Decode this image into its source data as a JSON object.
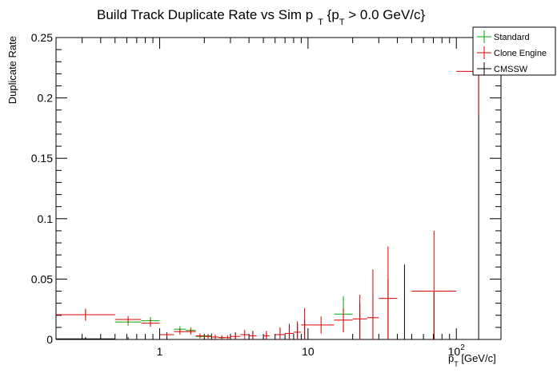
{
  "chart_data": {
    "type": "scatter",
    "title_main": "Build Track Duplicate Rate vs Sim p",
    "title_sub": "T",
    "title_rest": " {p",
    "title_sub2": "T",
    "title_tail": " > 0.0 GeV/c}",
    "ylabel": "Duplicate Rate",
    "xlabel_main": "p",
    "xlabel_sub": "T",
    "xlabel_rest": " [GeV/c]",
    "x_scale": "log",
    "xlim": [
      0.2,
      200
    ],
    "ylim": [
      0,
      0.25
    ],
    "y_ticks": [
      "0",
      "0.05",
      "0.1",
      "0.15",
      "0.2",
      "0.25"
    ],
    "x_ticks": [
      {
        "value": 1,
        "label": "1"
      },
      {
        "value": 10,
        "label": "10"
      },
      {
        "value": 100,
        "label": "10",
        "sup": "2"
      }
    ],
    "legend": {
      "placement": "top-right",
      "entries": [
        {
          "name": "Standard",
          "color": "#00aa00"
        },
        {
          "name": "Clone Engine",
          "color": "#dd0000"
        },
        {
          "name": "CMSSW",
          "color": "#000000"
        }
      ]
    },
    "series": [
      {
        "name": "Standard",
        "color": "#00aa00",
        "points": [
          {
            "x_lo": 0.2,
            "x_hi": 0.5,
            "y": 0.0205,
            "err": 0.004
          },
          {
            "x_lo": 0.5,
            "x_hi": 0.75,
            "y": 0.0145,
            "err": 0.003
          },
          {
            "x_lo": 0.75,
            "x_hi": 1.0,
            "y": 0.0155,
            "err": 0.003
          },
          {
            "x_lo": 1.0,
            "x_hi": 1.25,
            "y": 0.004,
            "err": 0.0015
          },
          {
            "x_lo": 1.25,
            "x_hi": 1.5,
            "y": 0.0085,
            "err": 0.0025
          },
          {
            "x_lo": 1.5,
            "x_hi": 1.75,
            "y": 0.0075,
            "err": 0.0025
          },
          {
            "x_lo": 1.75,
            "x_hi": 2.0,
            "y": 0.0025,
            "err": 0.0015
          },
          {
            "x_lo": 2.0,
            "x_hi": 2.25,
            "y": 0.003,
            "err": 0.0015
          },
          {
            "x_lo": 2.25,
            "x_hi": 2.5,
            "y": 0.002,
            "err": 0.0015
          },
          {
            "x_lo": 2.5,
            "x_hi": 2.75,
            "y": 0.0015,
            "err": 0.0015
          },
          {
            "x_lo": 15,
            "x_hi": 20,
            "y": 0.021,
            "err": 0.015
          }
        ]
      },
      {
        "name": "Clone Engine",
        "color": "#dd0000",
        "points": [
          {
            "x_lo": 0.2,
            "x_hi": 0.5,
            "y": 0.0205,
            "err": 0.005
          },
          {
            "x_lo": 0.5,
            "x_hi": 0.75,
            "y": 0.0165,
            "err": 0.003
          },
          {
            "x_lo": 0.75,
            "x_hi": 1.0,
            "y": 0.0135,
            "err": 0.003
          },
          {
            "x_lo": 1.0,
            "x_hi": 1.25,
            "y": 0.004,
            "err": 0.0015
          },
          {
            "x_lo": 1.25,
            "x_hi": 1.5,
            "y": 0.0065,
            "err": 0.0025
          },
          {
            "x_lo": 1.5,
            "x_hi": 1.75,
            "y": 0.0065,
            "err": 0.0025
          },
          {
            "x_lo": 1.75,
            "x_hi": 2.0,
            "y": 0.003,
            "err": 0.002
          },
          {
            "x_lo": 2.0,
            "x_hi": 2.25,
            "y": 0.0025,
            "err": 0.002
          },
          {
            "x_lo": 2.25,
            "x_hi": 2.5,
            "y": 0.002,
            "err": 0.002
          },
          {
            "x_lo": 2.5,
            "x_hi": 2.75,
            "y": 0.0015,
            "err": 0.002
          },
          {
            "x_lo": 2.75,
            "x_hi": 3.0,
            "y": 0.0015,
            "err": 0.002
          },
          {
            "x_lo": 3.0,
            "x_hi": 3.5,
            "y": 0.0025,
            "err": 0.003
          },
          {
            "x_lo": 3.5,
            "x_hi": 4.0,
            "y": 0.004,
            "err": 0.004
          },
          {
            "x_lo": 4.0,
            "x_hi": 4.5,
            "y": 0.003,
            "err": 0.004
          },
          {
            "x_lo": 5.0,
            "x_hi": 5.5,
            "y": 0.003,
            "err": 0.004
          },
          {
            "x_lo": 6.0,
            "x_hi": 7.0,
            "y": 0.004,
            "err": 0.006
          },
          {
            "x_lo": 7.0,
            "x_hi": 8.0,
            "y": 0.005,
            "err": 0.008
          },
          {
            "x_lo": 8.0,
            "x_hi": 9.0,
            "y": 0.006,
            "err": 0.009
          },
          {
            "x_lo": 9.0,
            "x_hi": 10.0,
            "y": 0.012,
            "err": 0.014
          },
          {
            "x_lo": 10.0,
            "x_hi": 15.0,
            "y": 0.012,
            "err": 0.007
          },
          {
            "x_lo": 15.0,
            "x_hi": 20.0,
            "y": 0.016,
            "err": 0.01
          },
          {
            "x_lo": 20.0,
            "x_hi": 25.0,
            "y": 0.017,
            "err": 0.02
          },
          {
            "x_lo": 25.0,
            "x_hi": 30.0,
            "y": 0.018,
            "err": 0.04
          },
          {
            "x_lo": 30.0,
            "x_hi": 40.0,
            "y": 0.034,
            "err": 0.043
          },
          {
            "x_lo": 50.0,
            "x_hi": 100.0,
            "y": 0.04,
            "err": 0.05
          },
          {
            "x_lo": 100.0,
            "x_hi": 200.0,
            "y": 0.222,
            "err": 0.036
          }
        ]
      },
      {
        "name": "CMSSW",
        "color": "#000000",
        "points": [
          {
            "x_lo": 0.2,
            "x_hi": 0.5,
            "y": 0.0005,
            "err": 0.0015
          },
          {
            "x_lo": 0.5,
            "x_hi": 0.75,
            "y": 0.0,
            "err": 0.002
          },
          {
            "x_lo": 1.0,
            "x_hi": 1.25,
            "y": 0.0,
            "err": 0.006
          },
          {
            "x_lo": 2.0,
            "x_hi": 2.5,
            "y": 0.0,
            "err": 0.005
          },
          {
            "x_lo": 3.0,
            "x_hi": 3.5,
            "y": 0.0,
            "err": 0.006
          },
          {
            "x_lo": 4.0,
            "x_hi": 4.5,
            "y": 0.0,
            "err": 0.007
          },
          {
            "x_lo": 5.0,
            "x_hi": 5.5,
            "y": 0.0,
            "err": 0.007
          },
          {
            "x_lo": 6.0,
            "x_hi": 7.0,
            "y": 0.0,
            "err": 0.009
          },
          {
            "x_lo": 7.0,
            "x_hi": 8.0,
            "y": 0.0,
            "err": 0.011
          },
          {
            "x_lo": 8.0,
            "x_hi": 9.0,
            "y": 0.0,
            "err": 0.013
          },
          {
            "x_lo": 9.0,
            "x_hi": 10.0,
            "y": 0.0,
            "err": 0.016
          },
          {
            "x_lo": 20.0,
            "x_hi": 25.0,
            "y": 0.0,
            "err": 0.03
          },
          {
            "x_lo": 25.0,
            "x_hi": 30.0,
            "y": 0.0,
            "err": 0.038
          },
          {
            "x_lo": 30.0,
            "x_hi": 40.0,
            "y": 0.0,
            "err": 0.05
          },
          {
            "x_lo": 40.0,
            "x_hi": 50.0,
            "y": 0.0,
            "err": 0.062
          },
          {
            "x_lo": 50.0,
            "x_hi": 100.0,
            "y": 0.0,
            "err": 0.04
          },
          {
            "x_lo": 100.0,
            "x_hi": 200.0,
            "y": 0.0,
            "err": 0.22
          }
        ]
      }
    ]
  }
}
